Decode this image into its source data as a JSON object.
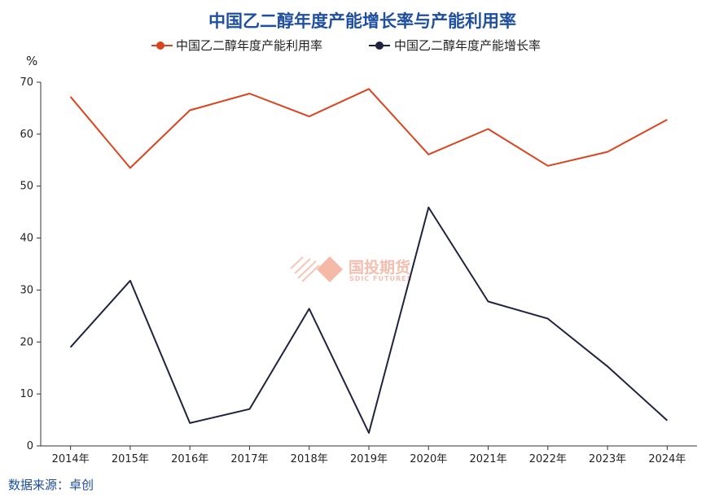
{
  "chart_data": {
    "type": "line",
    "title": "中国乙二醇年度产能增长率与产能利用率",
    "ylabel": "%",
    "xlabel": "",
    "categories": [
      "2014年",
      "2015年",
      "2016年",
      "2017年",
      "2018年",
      "2019年",
      "2020年",
      "2021年",
      "2022年",
      "2023年",
      "2024年"
    ],
    "ylim": [
      0,
      70
    ],
    "yticks": [
      0,
      10,
      20,
      30,
      40,
      50,
      60,
      70
    ],
    "legend_position": "top",
    "grid": false,
    "series": [
      {
        "name": "中国乙二醇年度产能利用率",
        "color": "#d9441f",
        "values": [
          67.2,
          53.5,
          64.6,
          67.8,
          63.4,
          68.7,
          56.1,
          61.0,
          53.9,
          56.6,
          62.8
        ]
      },
      {
        "name": "中国乙二醇年度产能增长率",
        "color": "#1f2340",
        "values": [
          19.0,
          31.8,
          4.4,
          7.1,
          26.4,
          2.5,
          45.9,
          27.8,
          24.5,
          15.3,
          4.9
        ]
      }
    ]
  },
  "source": "数据来源：卓创",
  "watermark": {
    "text": "国投期货",
    "subtext": "SDIC FUTURES"
  }
}
